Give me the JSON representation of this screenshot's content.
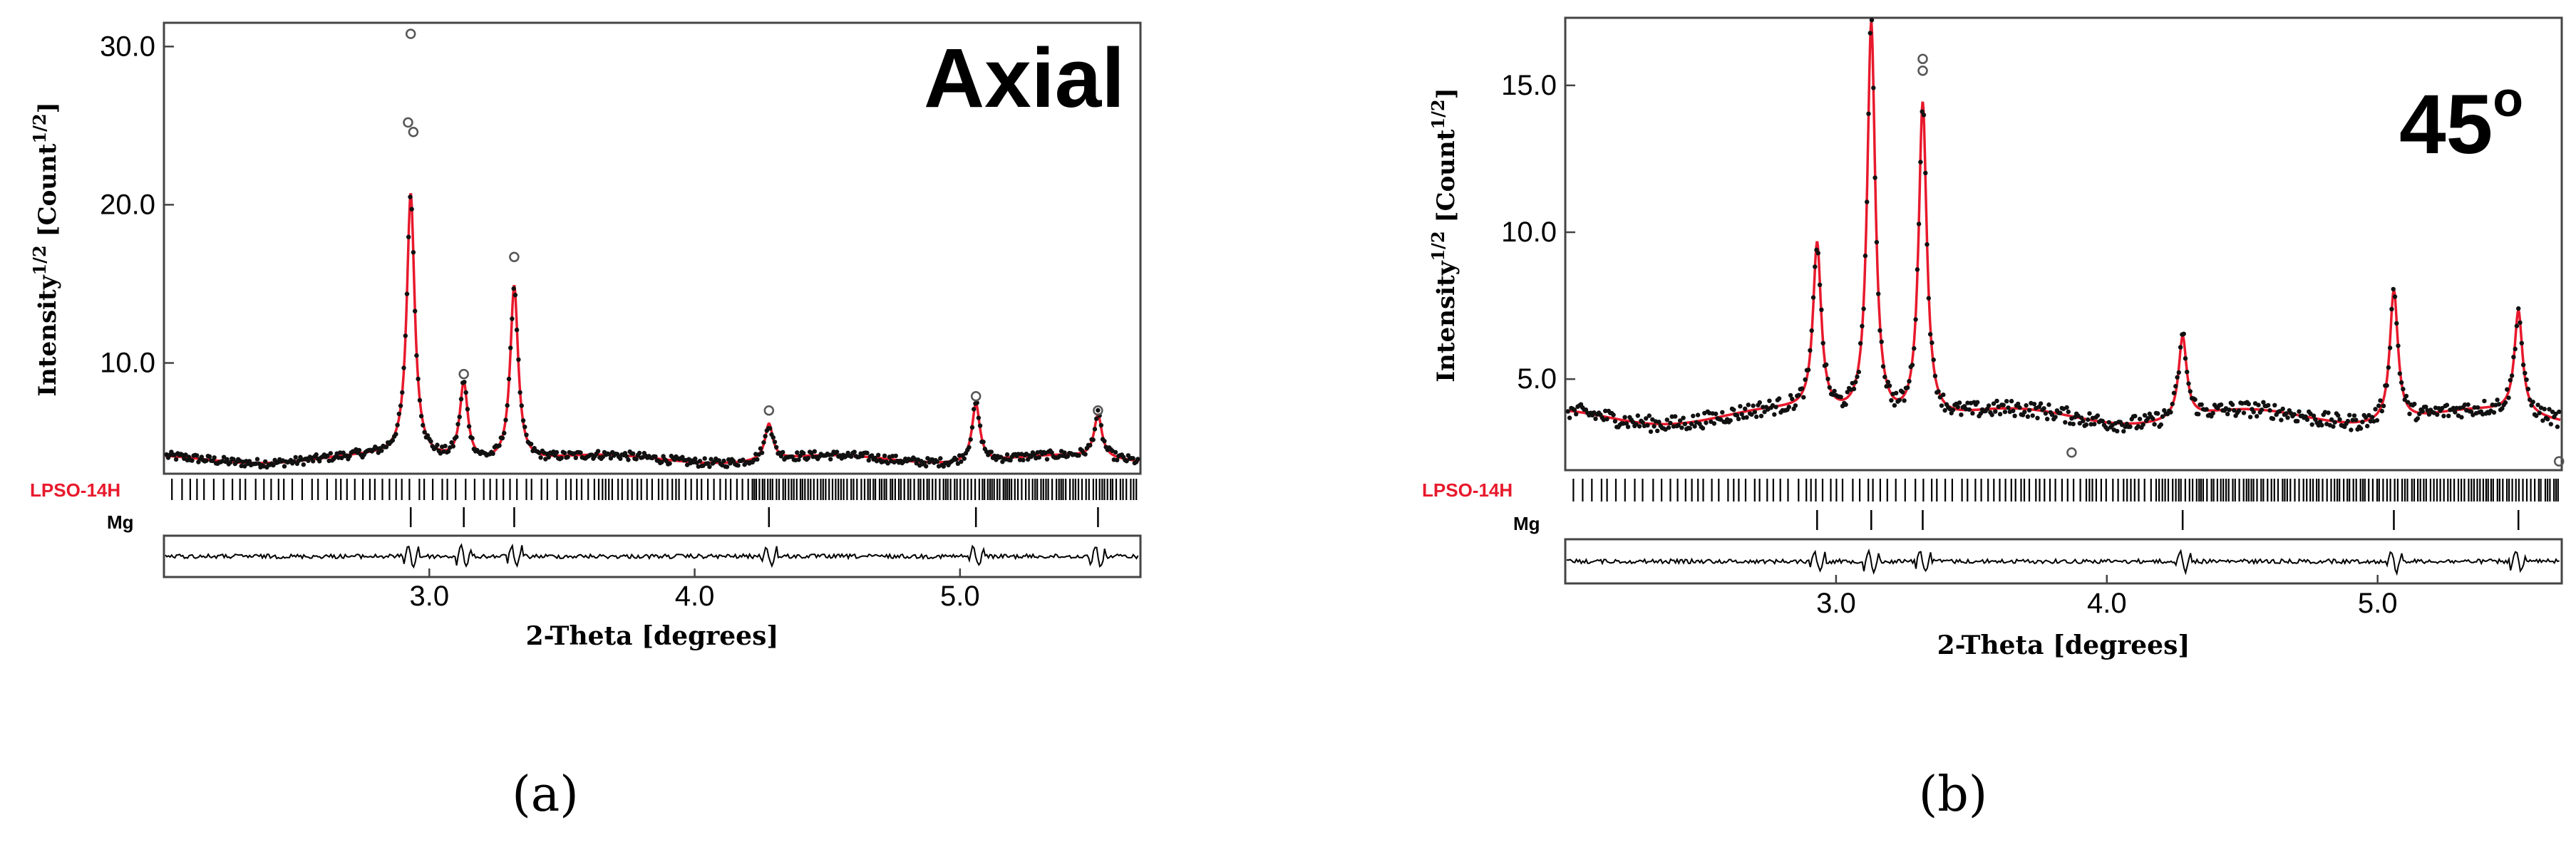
{
  "chart_data": [
    {
      "type": "scatter",
      "title": "Axial",
      "xlabel": "2-Theta [degrees]",
      "ylabel_base": "Intensity",
      "ylabel_sup": "1/2",
      "ylabel_unit": " [Count",
      "ylabel_unit_sup": "1/2",
      "ylabel_close": "]",
      "xlim": [
        2.0,
        5.68
      ],
      "ylim": [
        3.0,
        31.5
      ],
      "xticks": [
        3.0,
        4.0,
        5.0
      ],
      "xtick_labels": [
        "3.0",
        "4.0",
        "5.0"
      ],
      "yticks": [
        10.0,
        20.0,
        30.0
      ],
      "ytick_labels": [
        "10.0",
        "20.0",
        "30.0"
      ],
      "background": 3.9,
      "peaks": [
        {
          "x": 2.93,
          "y": 20.5
        },
        {
          "x": 3.13,
          "y": 8.8
        },
        {
          "x": 3.32,
          "y": 15.0
        },
        {
          "x": 4.28,
          "y": 6.2
        },
        {
          "x": 5.06,
          "y": 7.6
        },
        {
          "x": 5.52,
          "y": 6.6
        }
      ],
      "outliers": [
        {
          "x": 2.93,
          "y": 30.8
        },
        {
          "x": 2.92,
          "y": 25.2
        },
        {
          "x": 2.94,
          "y": 24.6
        },
        {
          "x": 3.32,
          "y": 16.7
        },
        {
          "x": 3.13,
          "y": 9.3
        },
        {
          "x": 4.28,
          "y": 7.0
        },
        {
          "x": 5.06,
          "y": 7.9
        },
        {
          "x": 5.52,
          "y": 7.0
        }
      ],
      "phases": [
        {
          "name": "LPSO-14H",
          "color": "#e8192c"
        },
        {
          "name": "Mg",
          "color": "#000000"
        }
      ],
      "mg_reflections": [
        2.93,
        3.13,
        3.32,
        4.28,
        5.06,
        5.52
      ],
      "series": [
        {
          "name": "observed",
          "color": "#000000"
        },
        {
          "name": "calculated",
          "color": "#e8192c"
        }
      ],
      "panel_label": "(a)"
    },
    {
      "type": "scatter",
      "title": "45",
      "title_sup": "o",
      "xlabel": "2-Theta [degrees]",
      "ylabel_base": "Intensity",
      "ylabel_sup": "1/2",
      "ylabel_unit": " [Count",
      "ylabel_unit_sup": "1/2",
      "ylabel_close": "]",
      "xlim": [
        2.0,
        5.68
      ],
      "ylim": [
        1.9,
        17.3
      ],
      "xticks": [
        3.0,
        4.0,
        5.0
      ],
      "xtick_labels": [
        "3.0",
        "4.0",
        "5.0"
      ],
      "yticks": [
        5.0,
        10.0,
        15.0
      ],
      "ytick_labels": [
        "5.0",
        "10.0",
        "15.0"
      ],
      "background": 3.7,
      "peaks": [
        {
          "x": 2.93,
          "y": 9.4
        },
        {
          "x": 3.13,
          "y": 17.2
        },
        {
          "x": 3.32,
          "y": 14.5
        },
        {
          "x": 4.28,
          "y": 6.5
        },
        {
          "x": 5.06,
          "y": 8.2
        },
        {
          "x": 5.52,
          "y": 7.2
        }
      ],
      "outliers": [
        {
          "x": 3.32,
          "y": 15.9
        },
        {
          "x": 3.32,
          "y": 15.5
        },
        {
          "x": 3.87,
          "y": 2.5
        },
        {
          "x": 5.67,
          "y": 2.2
        }
      ],
      "phases": [
        {
          "name": "LPSO-14H",
          "color": "#e8192c"
        },
        {
          "name": "Mg",
          "color": "#000000"
        }
      ],
      "mg_reflections": [
        2.93,
        3.13,
        3.32,
        4.28,
        5.06,
        5.52
      ],
      "series": [
        {
          "name": "observed",
          "color": "#000000"
        },
        {
          "name": "calculated",
          "color": "#e8192c"
        }
      ],
      "panel_label": "(b)"
    }
  ]
}
